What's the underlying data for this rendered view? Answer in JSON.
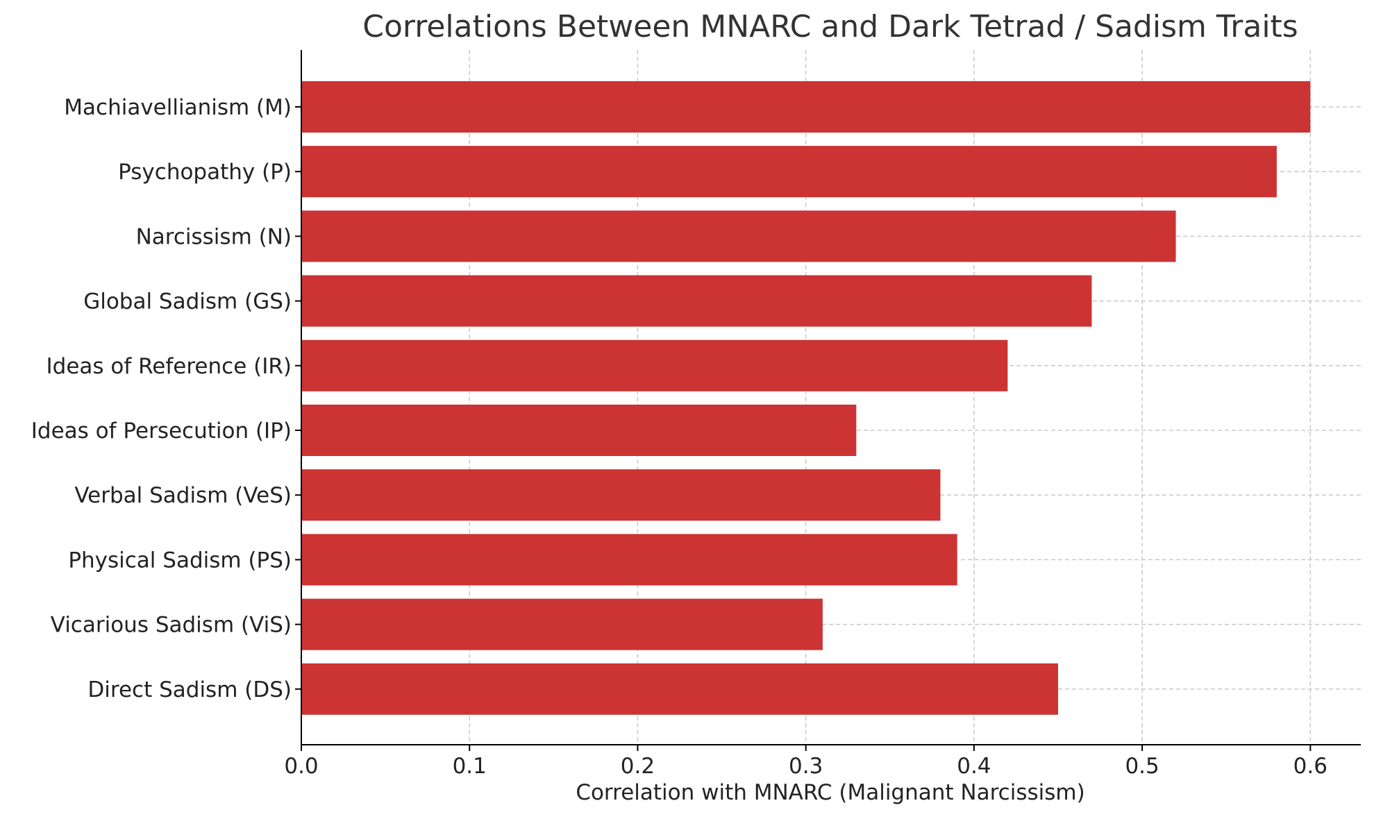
{
  "chart_data": {
    "type": "bar",
    "orientation": "horizontal",
    "title": "Correlations Between MNARC and Dark Tetrad / Sadism Traits",
    "xlabel": "Correlation with MNARC (Malignant Narcissism)",
    "ylabel": "",
    "xlim": [
      0.0,
      0.63
    ],
    "xticks": [
      "0.0",
      "0.1",
      "0.2",
      "0.3",
      "0.4",
      "0.5",
      "0.6"
    ],
    "grid": true,
    "color": "#cc3333",
    "categories": [
      "Machiavellianism (M)",
      "Psychopathy (P)",
      "Narcissism (N)",
      "Global Sadism (GS)",
      "Ideas of Reference (IR)",
      "Ideas of Persecution (IP)",
      "Verbal Sadism (VeS)",
      "Physical Sadism (PS)",
      "Vicarious Sadism (ViS)",
      "Direct Sadism (DS)"
    ],
    "values": [
      0.6,
      0.58,
      0.52,
      0.47,
      0.42,
      0.33,
      0.38,
      0.39,
      0.31,
      0.45
    ]
  }
}
